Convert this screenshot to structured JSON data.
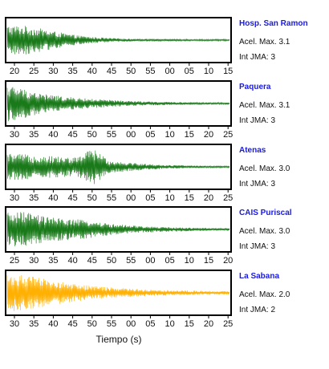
{
  "chart_data": [
    {
      "type": "line",
      "station": "Hosp. San Ramon",
      "aceleracion": "Acel. Max. 3.1",
      "intensidad": "Int JMA: 3",
      "color": "#1a7a1a",
      "x_ticks": [
        "20",
        "25",
        "30",
        "35",
        "40",
        "45",
        "50",
        "55",
        "00",
        "05",
        "10",
        "15"
      ],
      "amplitude_profile": [
        0.72,
        0.7,
        0.55,
        0.38,
        0.24,
        0.15,
        0.1,
        0.07,
        0.06,
        0.05,
        0.05,
        0.04,
        0.04,
        0.04
      ]
    },
    {
      "type": "line",
      "station": "Paquera",
      "aceleracion": "Acel. Max. 3.1",
      "intensidad": "Int JMA: 3",
      "color": "#1a7a1a",
      "x_ticks": [
        "30",
        "35",
        "40",
        "45",
        "50",
        "55",
        "00",
        "05",
        "10",
        "15",
        "20",
        "25"
      ],
      "amplitude_profile": [
        0.9,
        0.7,
        0.48,
        0.36,
        0.28,
        0.22,
        0.17,
        0.13,
        0.1,
        0.08,
        0.07,
        0.06,
        0.05,
        0.05
      ]
    },
    {
      "type": "line",
      "station": "Atenas",
      "aceleracion": "Acel. Max. 3.0",
      "intensidad": "Int JMA: 3",
      "color": "#1a7a1a",
      "x_ticks": [
        "30",
        "35",
        "40",
        "45",
        "50",
        "55",
        "00",
        "05",
        "10",
        "15",
        "20",
        "25"
      ],
      "amplitude_profile": [
        0.65,
        0.6,
        0.55,
        0.5,
        0.45,
        0.9,
        0.3,
        0.22,
        0.15,
        0.1,
        0.08,
        0.06,
        0.05,
        0.05
      ]
    },
    {
      "type": "line",
      "station": "CAIS Puriscal",
      "aceleracion": "Acel. Max. 3.0",
      "intensidad": "Int JMA: 3",
      "color": "#1a7a1a",
      "x_ticks": [
        "25",
        "30",
        "35",
        "40",
        "45",
        "50",
        "55",
        "00",
        "05",
        "10",
        "15",
        "20"
      ],
      "amplitude_profile": [
        0.8,
        0.85,
        0.65,
        0.55,
        0.5,
        0.4,
        0.28,
        0.2,
        0.15,
        0.12,
        0.1,
        0.08,
        0.07,
        0.06
      ]
    },
    {
      "type": "line",
      "station": "La Sabana",
      "aceleracion": "Acel. Max. 2.0",
      "intensidad": "Int JMA: 2",
      "color": "#ffb000",
      "x_ticks": [
        "30",
        "35",
        "40",
        "45",
        "50",
        "55",
        "00",
        "05",
        "10",
        "15",
        "20",
        "25"
      ],
      "amplitude_profile": [
        0.92,
        0.85,
        0.7,
        0.55,
        0.42,
        0.33,
        0.26,
        0.21,
        0.17,
        0.14,
        0.12,
        0.1,
        0.09,
        0.08
      ]
    }
  ],
  "xlabel": "Tiempo (s)"
}
